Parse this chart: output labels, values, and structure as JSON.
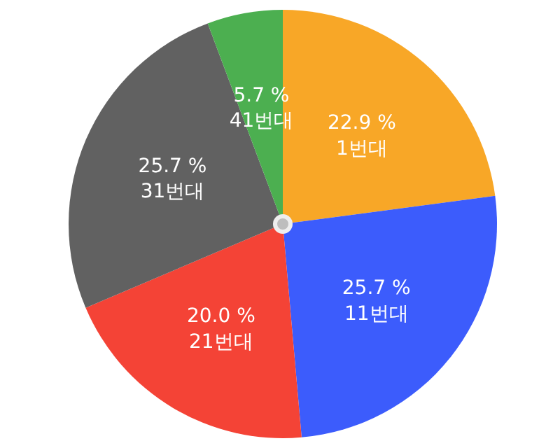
{
  "chart_data": {
    "type": "pie",
    "categories": [
      "1번대",
      "11번대",
      "21번대",
      "31번대",
      "41번대"
    ],
    "values": [
      22.9,
      25.7,
      20.0,
      25.7,
      5.7
    ],
    "value_labels": [
      "22.9 %",
      "25.7 %",
      "20.0 %",
      "25.7 %",
      "5.7 %"
    ],
    "colors": [
      "#f8a727",
      "#3c5cfc",
      "#f44336",
      "#616161",
      "#4caf50"
    ]
  }
}
